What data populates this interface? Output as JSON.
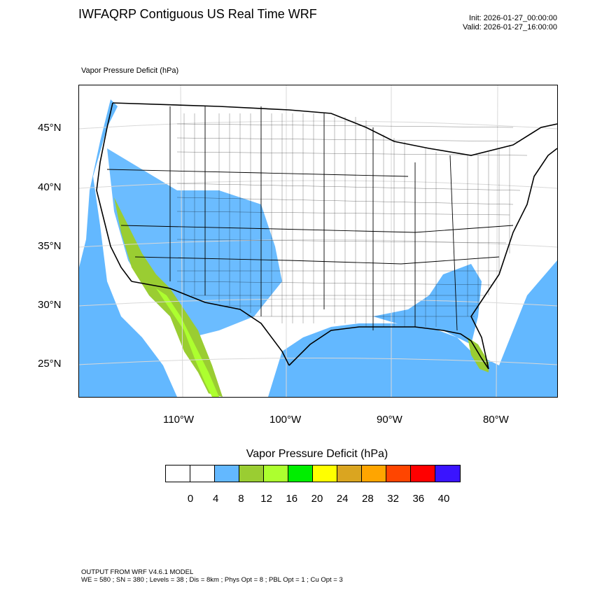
{
  "header": {
    "title": "IWFAQRP Contiguous US Real Time WRF",
    "init": "Init: 2026-01-27_00:00:00",
    "valid": "Valid: 2026-01-27_16:00:00"
  },
  "map": {
    "subtitle": "Vapor Pressure Deficit   (hPa)",
    "lat_labels": [
      "45°N",
      "40°N",
      "35°N",
      "30°N",
      "25°N"
    ],
    "lon_labels": [
      "110°W",
      "100°W",
      "90°W",
      "80°W"
    ]
  },
  "colorbar": {
    "title": "Vapor Pressure Deficit  (hPa)",
    "colors": [
      "#ffffff",
      "#ffffff",
      "#63b8ff",
      "#9acd32",
      "#adff2f",
      "#00ee00",
      "#ffff00",
      "#daa520",
      "#ffa500",
      "#ff4500",
      "#ff0000",
      "#3a14ff"
    ],
    "labels": [
      "0",
      "4",
      "8",
      "12",
      "16",
      "20",
      "24",
      "28",
      "32",
      "36",
      "40"
    ]
  },
  "footer": {
    "line1": "OUTPUT FROM WRF V4.6.1 MODEL",
    "line2": "WE = 580 ; SN = 380 ; Levels = 38 ; Dis = 8km ; Phys Opt = 8 ; PBL Opt = 1 ; Cu Opt = 3"
  }
}
